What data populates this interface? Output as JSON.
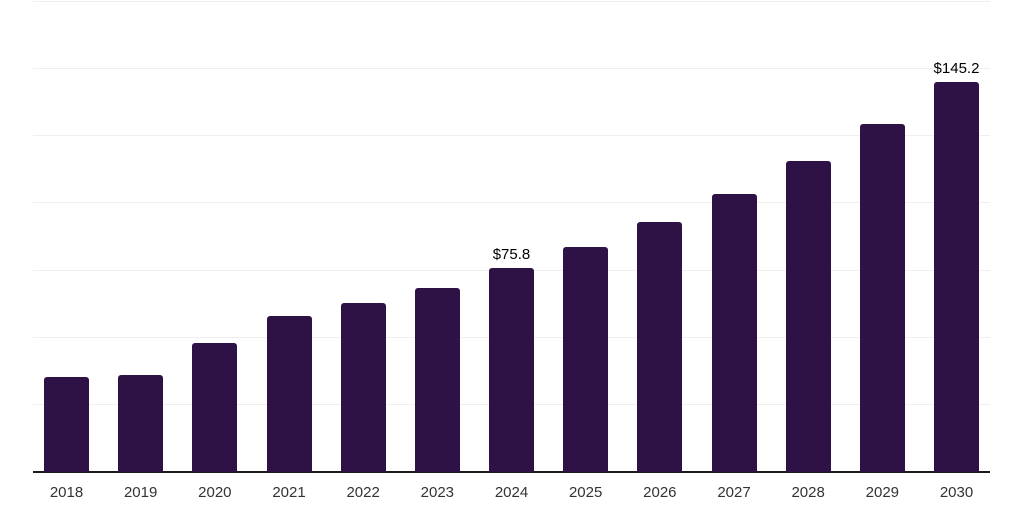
{
  "chart_data": {
    "type": "bar",
    "title": "",
    "categories": [
      "2018",
      "2019",
      "2020",
      "2021",
      "2022",
      "2023",
      "2024",
      "2025",
      "2026",
      "2027",
      "2028",
      "2029",
      "2030"
    ],
    "values": [
      35.2,
      36.0,
      48.2,
      58.2,
      63.0,
      68.6,
      75.8,
      83.8,
      93.0,
      103.4,
      115.7,
      129.7,
      145.2
    ],
    "data_labels": [
      "",
      "",
      "",
      "",
      "",
      "",
      "$75.8",
      "",
      "",
      "",
      "",
      "",
      "$145.2"
    ],
    "xlabel": "",
    "ylabel": "",
    "ylim": [
      0,
      175
    ],
    "gridline_step": 25,
    "grid": true,
    "legend_position": "none",
    "colors": {
      "bar": "#2f1245",
      "axis_line": "#1a1a1a",
      "gridline": "#efefef",
      "tick_label": "#333333",
      "data_label": "#000000",
      "background": "#ffffff"
    }
  }
}
